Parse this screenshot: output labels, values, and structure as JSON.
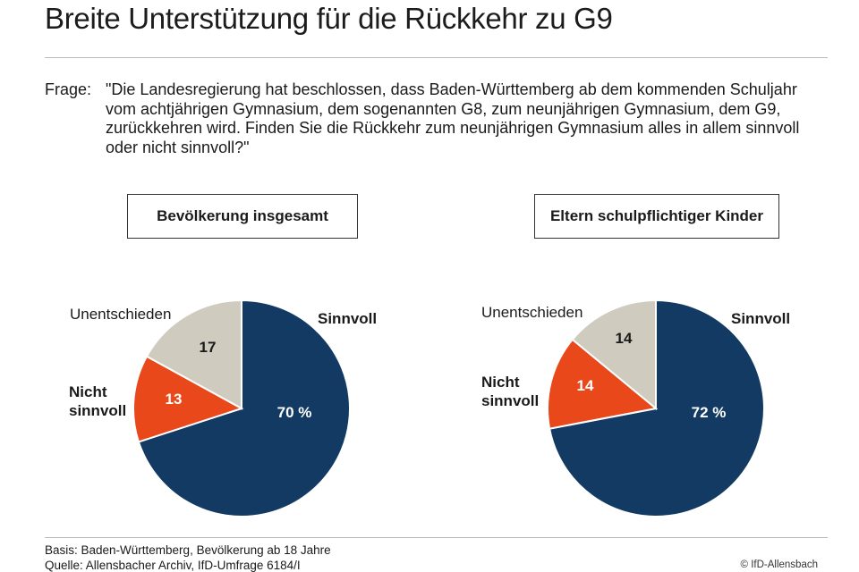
{
  "title": "Breite Unterstützung für die Rückkehr zu G9",
  "question": {
    "label": "Frage:",
    "text": "\"Die Landesregierung hat beschlossen, dass Baden-Württemberg ab dem kommenden Schuljahr vom achtjährigen Gymnasium, dem sogenannten G8, zum neunjährigen Gymnasium, dem G9, zurückkehren wird. Finden Sie die Rückkehr zum neunjährigen Gymnasium alles in allem sinnvoll oder nicht sinnvoll?\""
  },
  "chart_data": [
    {
      "type": "pie",
      "title": "Bevölkerung insgesamt",
      "categories": [
        "Sinnvoll",
        "Nicht sinnvoll",
        "Unentschieden"
      ],
      "values": [
        70,
        13,
        17
      ],
      "value_labels": [
        "70 %",
        "13",
        "17"
      ],
      "colors": [
        "#123a63",
        "#e8481a",
        "#cfcbbf"
      ]
    },
    {
      "type": "pie",
      "title": "Eltern schulpflichtiger Kinder",
      "categories": [
        "Sinnvoll",
        "Nicht sinnvoll",
        "Unentschieden"
      ],
      "values": [
        72,
        14,
        14
      ],
      "value_labels": [
        "72 %",
        "14",
        "14"
      ],
      "colors": [
        "#123a63",
        "#e8481a",
        "#cfcbbf"
      ]
    }
  ],
  "footer": {
    "basis": "Basis: Baden-Württemberg, Bevölkerung ab 18 Jahre",
    "source": "Quelle: Allensbacher Archiv, IfD-Umfrage 6184/I",
    "copyright": "© IfD-Allensbach"
  }
}
